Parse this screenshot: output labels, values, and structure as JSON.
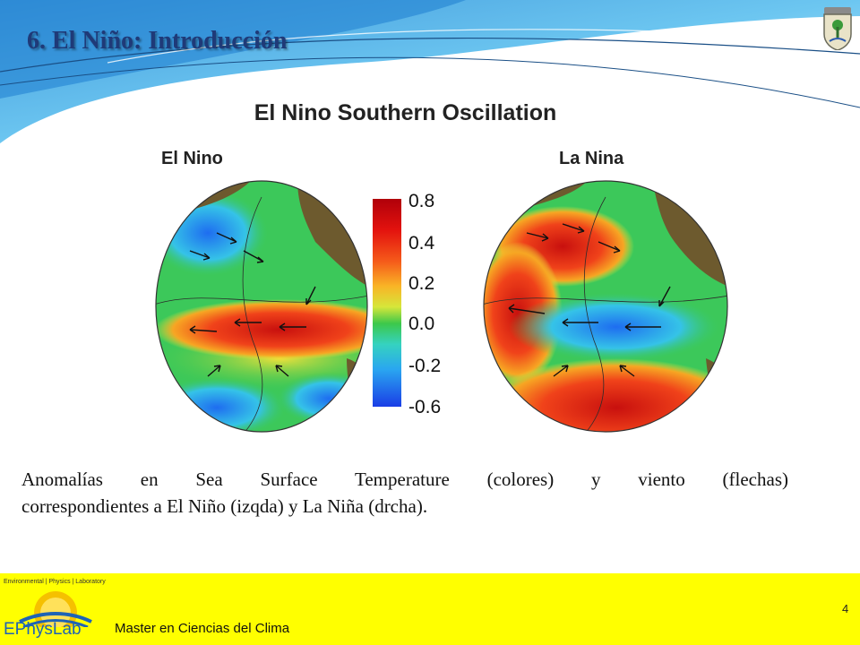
{
  "slide": {
    "title": "6.  El Niño: Introducción"
  },
  "figure": {
    "title": "El Nino Southern Oscillation",
    "left_label": "El Nino",
    "right_label": "La Nina",
    "colorbar_ticks": [
      "0.8",
      "0.4",
      "0.2",
      "0.0",
      "-0.2",
      "-0.6"
    ],
    "colors": {
      "warm": "#d11a12",
      "cool": "#1f6ff0",
      "neutral": "#3ac84a",
      "land": "#6d5a2e"
    }
  },
  "caption": {
    "line1": "Anomalías en Sea Surface Temperature (colores) y viento (flechas)",
    "line2": "correspondientes a  El Niño (izqda) y La Niña (drcha)."
  },
  "footer": {
    "lab_name": "Environmental | Physics | Laboratory",
    "lab_word": "EPhysLab",
    "master": "Master en Ciencias del Clima",
    "page_number": "4"
  },
  "icons": {
    "crest": "university-crest-icon",
    "lab_logo": "ephyslab-sun-logo-icon"
  }
}
